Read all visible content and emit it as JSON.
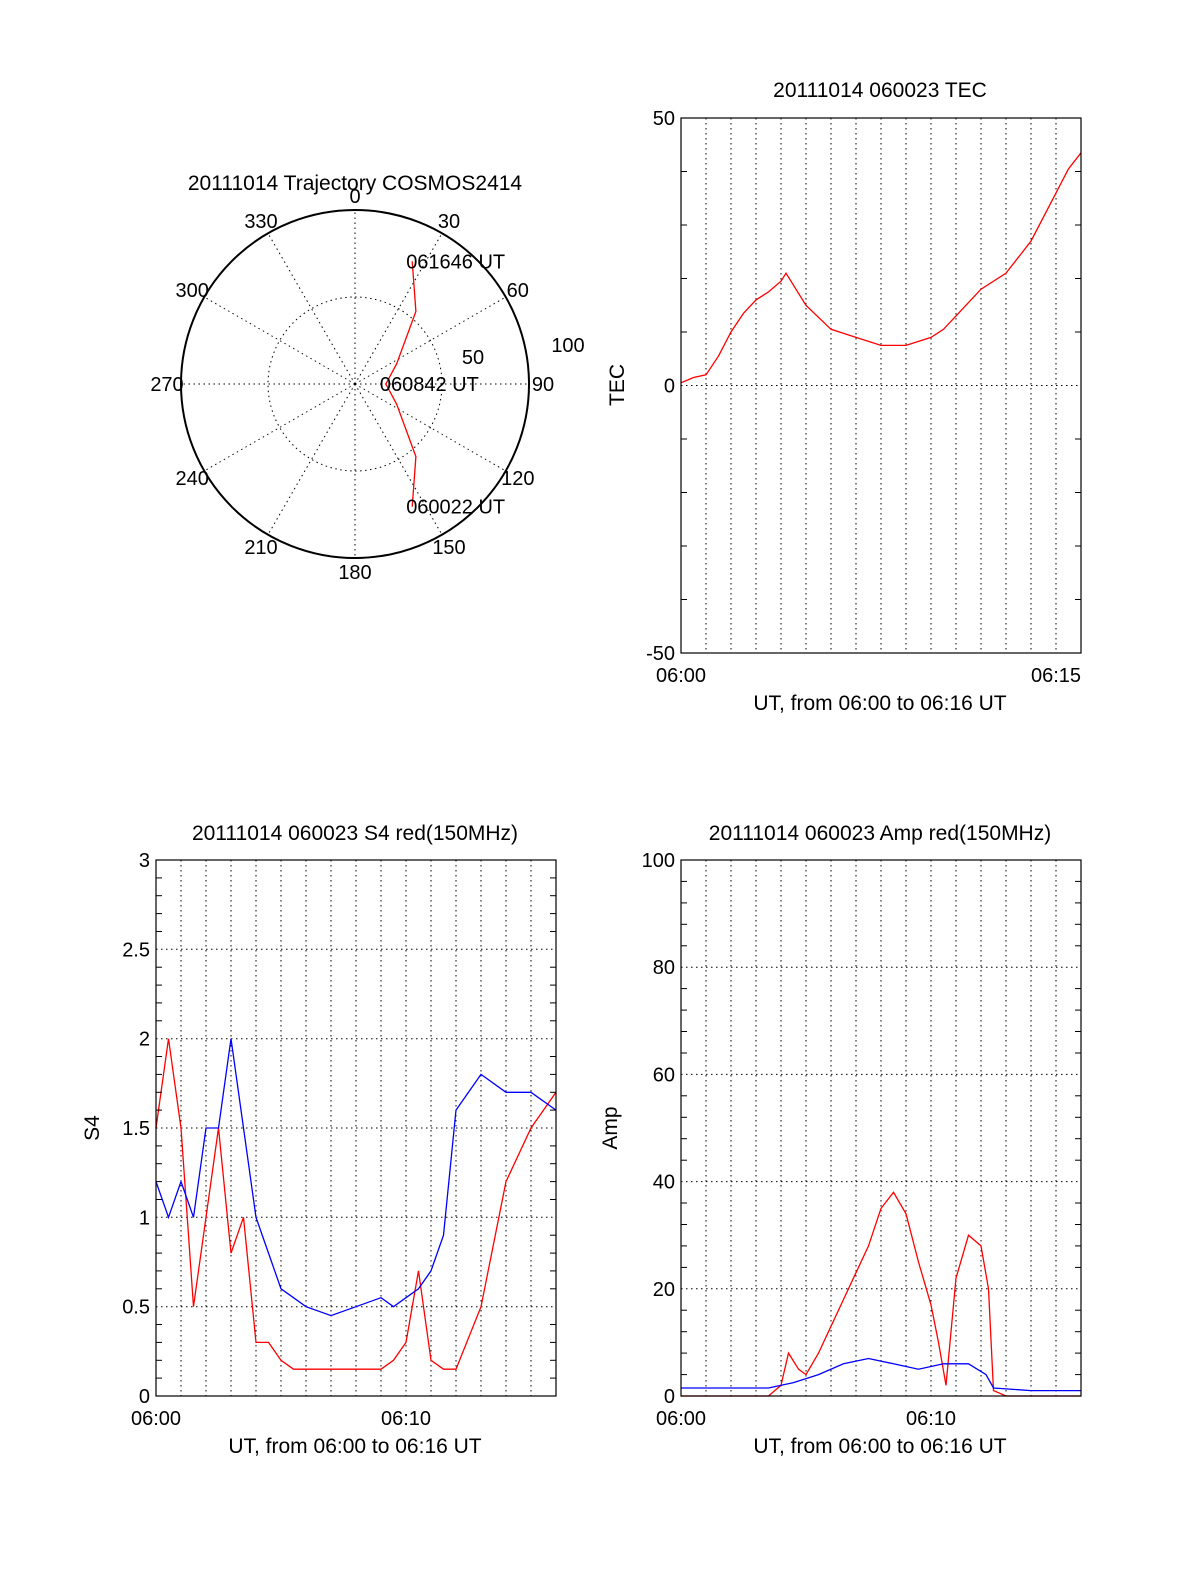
{
  "colors": {
    "red_series": "#ff0000",
    "blue_series": "#0000ff",
    "axes": "#000000",
    "background": "#ffffff"
  },
  "chart_data": [
    {
      "type": "polar",
      "title": "20111014 Trajectory COSMOS2414",
      "angle_labels": [
        "0",
        "30",
        "60",
        "90",
        "120",
        "150",
        "180",
        "210",
        "240",
        "270",
        "300",
        "330"
      ],
      "radius_labels": [
        "50",
        "100"
      ],
      "grid": true,
      "series": [
        {
          "name": "",
          "color": "#ff0000",
          "points_az_el": [
            [
              25,
              20
            ],
            [
              40,
              41
            ],
            [
              64,
              66
            ],
            [
              90,
              74
            ],
            [
              116,
              66
            ],
            [
              140,
              41
            ],
            [
              155,
              20
            ]
          ]
        }
      ],
      "annotations": [
        {
          "text": "061646 UT",
          "az": 25,
          "el": 20
        },
        {
          "text": "060842 UT",
          "az": 90,
          "el": 74
        },
        {
          "text": "060022 UT",
          "az": 155,
          "el": 20
        }
      ]
    },
    {
      "type": "line",
      "title": "20111014 060023 TEC",
      "xlabel": "UT, from 06:00 to 06:16 UT",
      "ylabel": "TEC",
      "xlim": [
        0,
        16
      ],
      "ylim": [
        -50,
        50
      ],
      "x_tick_labels": [
        "06:00",
        "06:15"
      ],
      "x_tick_positions": [
        0,
        15
      ],
      "y_tick_labels": [
        "-50",
        "0",
        "50"
      ],
      "y_ticks": [
        -50,
        0,
        50
      ],
      "grid": true,
      "x_unit": "minutes after 06:00 UT",
      "series": [
        {
          "name": "",
          "color": "#ff0000",
          "x": [
            0,
            0.5,
            1.0,
            1.5,
            2.0,
            2.5,
            3.0,
            3.5,
            4.0,
            4.2,
            5.0,
            6.0,
            7.0,
            8.0,
            9.0,
            10.0,
            10.5,
            11.0,
            12.0,
            13.0,
            14.0,
            15.0,
            15.5,
            16.0
          ],
          "y": [
            0.5,
            1.5,
            2.0,
            5.5,
            10.0,
            13.5,
            16.0,
            17.5,
            19.5,
            21.0,
            15.0,
            10.5,
            9.0,
            7.5,
            7.5,
            9.0,
            10.5,
            13.0,
            18.0,
            21.0,
            27.0,
            36.0,
            40.5,
            43.5
          ]
        }
      ]
    },
    {
      "type": "line",
      "title": "20111014 060023 S4 red(150MHz)",
      "xlabel": "UT, from 06:00 to 06:16 UT",
      "ylabel": "S4",
      "xlim": [
        0,
        16
      ],
      "ylim": [
        0,
        3
      ],
      "x_tick_labels": [
        "06:00",
        "06:10"
      ],
      "x_tick_positions": [
        0,
        10
      ],
      "y_tick_labels": [
        "0",
        "0.5",
        "1",
        "1.5",
        "2",
        "2.5",
        "3"
      ],
      "y_ticks": [
        0,
        0.5,
        1,
        1.5,
        2,
        2.5,
        3
      ],
      "grid": true,
      "x_unit": "minutes after 06:00 UT",
      "series": [
        {
          "name": "",
          "color": "#ff0000",
          "x": [
            0,
            0.5,
            1.0,
            1.5,
            2.0,
            2.5,
            3.0,
            3.5,
            4.0,
            4.5,
            5.0,
            5.5,
            6.0,
            7.0,
            8.0,
            9.0,
            9.5,
            10.0,
            10.5,
            11.0,
            11.5,
            12.0,
            13.0,
            14.0,
            15.0,
            16.0
          ],
          "y": [
            1.5,
            2.0,
            1.5,
            0.5,
            1.0,
            1.5,
            0.8,
            1.0,
            0.3,
            0.3,
            0.2,
            0.15,
            0.15,
            0.15,
            0.15,
            0.15,
            0.2,
            0.3,
            0.7,
            0.2,
            0.15,
            0.15,
            0.5,
            1.2,
            1.5,
            1.7
          ]
        },
        {
          "name": "",
          "color": "#0000ff",
          "x": [
            0,
            0.5,
            1.0,
            1.5,
            2.0,
            2.5,
            3.0,
            3.5,
            4.0,
            4.5,
            5.0,
            5.5,
            6.0,
            7.0,
            8.0,
            9.0,
            9.5,
            10.0,
            10.5,
            11.0,
            11.5,
            12.0,
            13.0,
            14.0,
            15.0,
            16.0
          ],
          "y": [
            1.2,
            1.0,
            1.2,
            1.0,
            1.5,
            1.5,
            2.0,
            1.5,
            1.0,
            0.8,
            0.6,
            0.55,
            0.5,
            0.45,
            0.5,
            0.55,
            0.5,
            0.55,
            0.6,
            0.7,
            0.9,
            1.6,
            1.8,
            1.7,
            1.7,
            1.6
          ]
        }
      ]
    },
    {
      "type": "line",
      "title": "20111014 060023 Amp red(150MHz)",
      "xlabel": "UT, from 06:00 to 06:16 UT",
      "ylabel": "Amp",
      "xlim": [
        0,
        16
      ],
      "ylim": [
        0,
        100
      ],
      "x_tick_labels": [
        "06:00",
        "06:10"
      ],
      "x_tick_positions": [
        0,
        10
      ],
      "y_tick_labels": [
        "0",
        "20",
        "40",
        "60",
        "80",
        "100"
      ],
      "y_ticks": [
        0,
        20,
        40,
        60,
        80,
        100
      ],
      "grid": true,
      "x_unit": "minutes after 06:00 UT",
      "series": [
        {
          "name": "",
          "color": "#ff0000",
          "x": [
            0,
            3.5,
            4.0,
            4.3,
            4.7,
            5.0,
            5.5,
            6.0,
            6.5,
            7.0,
            7.5,
            8.0,
            8.5,
            9.0,
            9.5,
            10.0,
            10.3,
            10.6,
            11.0,
            11.5,
            12.0,
            12.3,
            12.5,
            13.0,
            14.0,
            15.0,
            16.0
          ],
          "y": [
            0,
            0,
            2,
            8,
            5,
            4,
            8,
            13,
            18,
            23,
            28,
            35,
            38,
            34,
            25,
            17,
            10,
            2,
            22,
            30,
            28,
            20,
            1,
            0,
            0,
            0,
            0
          ]
        },
        {
          "name": "",
          "color": "#0000ff",
          "x": [
            0,
            2.0,
            3.5,
            4.5,
            5.5,
            6.5,
            7.5,
            8.5,
            9.5,
            10.5,
            11.5,
            12.2,
            12.5,
            14.0,
            16.0
          ],
          "y": [
            1.5,
            1.5,
            1.5,
            2.5,
            4.0,
            6.0,
            7.0,
            6.0,
            5.0,
            6.0,
            6.0,
            4.0,
            1.5,
            1.0,
            1.0
          ]
        }
      ]
    }
  ]
}
